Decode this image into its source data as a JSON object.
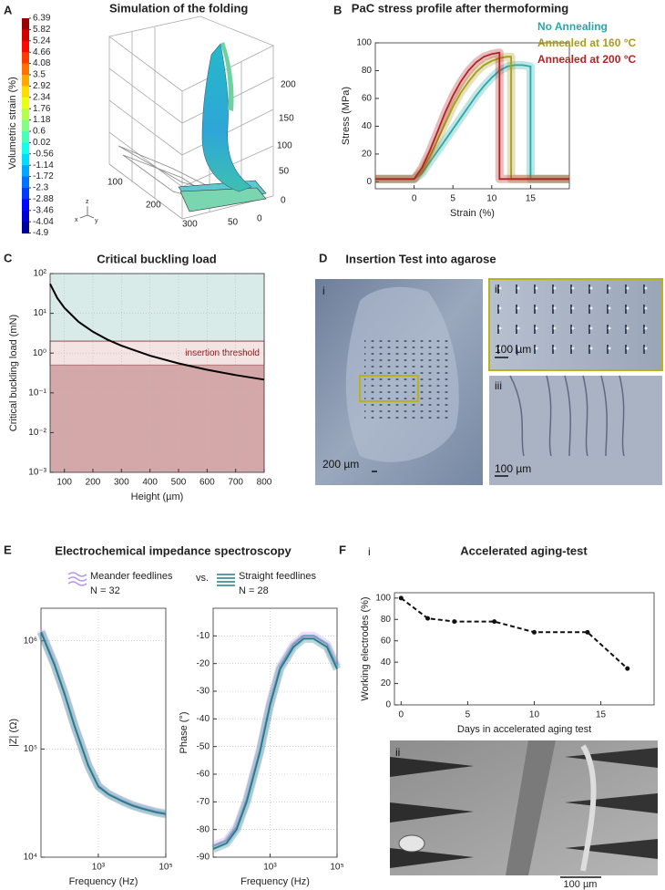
{
  "figure": {
    "panel_letters": [
      "A",
      "B",
      "C",
      "D",
      "E",
      "F"
    ],
    "insertion": {
      "title": "Insertion Test into agarose",
      "sub_labels": [
        "i",
        "ii",
        "iii"
      ],
      "scale_bars": [
        "200 µm",
        "100 µm",
        "100 µm"
      ]
    },
    "eis": {
      "title": "Electrochemical impedance spectroscopy",
      "vs": "vs."
    },
    "aging": {
      "sub_labels": [
        "i",
        "ii"
      ],
      "scale_bar": "100 µm"
    }
  },
  "chart_data": [
    {
      "type": "surface3d",
      "title": "Simulation of the folding",
      "colorbar_label": "Volumetric strain (%)",
      "colormap": "jet",
      "colorbar_ticks": [
        6.39,
        5.82,
        5.24,
        4.66,
        4.08,
        3.5,
        2.92,
        2.34,
        1.76,
        1.18,
        0.6,
        0.02,
        -0.56,
        -1.14,
        -1.72,
        -2.3,
        -2.88,
        -3.46,
        -4.04,
        -4.9
      ],
      "zticks": [
        0,
        50,
        100,
        150,
        200
      ],
      "xticks": [
        100,
        200,
        300
      ],
      "yticks": [
        50,
        0
      ],
      "axis_letters": [
        "z",
        "x",
        "y"
      ]
    },
    {
      "type": "line",
      "title": "PaC stress profile after thermoforming",
      "xlabel": "Strain (%)",
      "ylabel": "Stress (MPa)",
      "xlim": [
        -5,
        20
      ],
      "ylim": [
        -5,
        100
      ],
      "xticks": [
        0,
        5,
        10,
        15
      ],
      "yticks": [
        0,
        20,
        40,
        60,
        80,
        100
      ],
      "shaded": true,
      "grid": false,
      "series": [
        {
          "name": "No Annealing",
          "color": "#2aa8a8",
          "x": [
            -5,
            0,
            1,
            2,
            3,
            4,
            5,
            6,
            7,
            8,
            9,
            10,
            11,
            12,
            13,
            14,
            15,
            15,
            20
          ],
          "values": [
            2,
            2,
            6,
            14,
            22,
            30,
            38,
            46,
            54,
            62,
            69,
            75,
            80,
            83,
            84,
            84,
            83,
            2,
            2
          ]
        },
        {
          "name": "Annealed at 160 °C",
          "color": "#a89c1c",
          "x": [
            -5,
            0,
            1,
            2,
            3,
            4,
            5,
            6,
            7,
            8,
            9,
            10,
            11,
            12,
            12.5,
            12.5,
            20
          ],
          "values": [
            2,
            2,
            8,
            18,
            30,
            42,
            54,
            64,
            72,
            79,
            84,
            87,
            89,
            90,
            90,
            2,
            2
          ]
        },
        {
          "name": "Annealed at 200 °C",
          "color": "#b02424",
          "x": [
            -5,
            0,
            1,
            2,
            3,
            4,
            5,
            6,
            7,
            8,
            9,
            10,
            11,
            11,
            20
          ],
          "values": [
            2,
            2,
            10,
            22,
            36,
            50,
            62,
            72,
            80,
            86,
            90,
            92,
            93,
            2,
            2
          ]
        }
      ]
    },
    {
      "type": "line",
      "title": "Critical buckling load",
      "xlabel": "Height (µm)",
      "ylabel": "Critical buckling load (mN)",
      "xlim": [
        50,
        800
      ],
      "ylim": [
        0.001,
        100
      ],
      "ylog": true,
      "grid": true,
      "xticks": [
        100,
        200,
        300,
        400,
        500,
        600,
        700,
        800
      ],
      "yticks": [
        {
          "value": 0.001,
          "label": "10⁻³"
        },
        {
          "value": 0.01,
          "label": "10⁻²"
        },
        {
          "value": 0.1,
          "label": "10⁻¹"
        },
        {
          "value": 1,
          "label": "10⁰"
        },
        {
          "value": 10,
          "label": "10¹"
        },
        {
          "value": 100,
          "label": "10²"
        }
      ],
      "threshold": [
        0.5,
        2
      ],
      "threshold_label": "insertion threshold",
      "series": [
        {
          "color": "#000000",
          "x": [
            50,
            75,
            100,
            150,
            200,
            250,
            300,
            400,
            500,
            600,
            700,
            800
          ],
          "values": [
            55,
            24.4,
            13.7,
            6.1,
            3.44,
            2.2,
            1.53,
            0.86,
            0.55,
            0.38,
            0.28,
            0.215
          ]
        }
      ]
    },
    {
      "type": "line",
      "xlabel": "Frequency (Hz)",
      "ylabel": "|Z| (Ω)",
      "xlog": true,
      "ylog": true,
      "grid": true,
      "shaded": true,
      "xlim": [
        20,
        100000
      ],
      "ylim": [
        10000,
        2000000
      ],
      "xticks": [
        {
          "value": 1000,
          "label": "10³"
        },
        {
          "value": 100000,
          "label": "10⁵"
        }
      ],
      "yticks": [
        {
          "value": 10000,
          "label": "10⁴"
        },
        {
          "value": 100000,
          "label": "10⁵"
        },
        {
          "value": 1000000,
          "label": "10⁶"
        }
      ],
      "x": [
        20,
        50,
        100,
        200,
        500,
        1000,
        2000,
        5000,
        10000,
        20000,
        50000,
        100000
      ],
      "series": [
        {
          "name": "Meander feedlines",
          "n": "N = 32",
          "color": "#b89be4",
          "values": [
            1250000,
            620000,
            330000,
            165000,
            72000,
            46000,
            38500,
            33500,
            30500,
            28500,
            26500,
            25500
          ]
        },
        {
          "name": "Straight feedlines",
          "n": "N = 28",
          "color": "#1f7f86",
          "values": [
            1200000,
            600000,
            320000,
            160000,
            70000,
            45000,
            38000,
            33000,
            30000,
            28000,
            26000,
            25000
          ]
        }
      ]
    },
    {
      "type": "line",
      "xlabel": "Frequency (Hz)",
      "ylabel": "Phase (°)",
      "xlog": true,
      "grid": true,
      "shaded": true,
      "xlim": [
        20,
        100000
      ],
      "ylim": [
        -90,
        0
      ],
      "xticks": [
        {
          "value": 1000,
          "label": "10³"
        },
        {
          "value": 100000,
          "label": "10⁵"
        }
      ],
      "yticks": [
        -90,
        -80,
        -70,
        -60,
        -50,
        -40,
        -30,
        -20,
        -10
      ],
      "x": [
        20,
        50,
        100,
        200,
        500,
        1000,
        2000,
        5000,
        10000,
        20000,
        50000,
        100000
      ],
      "series": [
        {
          "color": "#b89be4",
          "values": [
            -86,
            -84,
            -79,
            -69,
            -51,
            -34,
            -21,
            -13,
            -10,
            -10,
            -13,
            -21
          ]
        },
        {
          "color": "#1f7f86",
          "values": [
            -87,
            -85,
            -80,
            -70,
            -52,
            -35,
            -22,
            -14,
            -11,
            -11,
            -14,
            -22
          ]
        }
      ]
    },
    {
      "type": "line",
      "title": "Accelerated aging-test",
      "xlabel": "Days in accelerated aging test",
      "ylabel": "Working electrodes (%)",
      "xlim": [
        -0.5,
        19
      ],
      "ylim": [
        0,
        105
      ],
      "xticks": [
        0,
        5,
        10,
        15
      ],
      "yticks": [
        0,
        20,
        40,
        60,
        80,
        100
      ],
      "grid": false,
      "dashed": true,
      "markers": true,
      "series": [
        {
          "color": "#111111",
          "x": [
            0,
            2,
            4,
            7,
            10,
            14,
            17
          ],
          "values": [
            100,
            81,
            78,
            78,
            68,
            68,
            34
          ]
        }
      ]
    }
  ]
}
